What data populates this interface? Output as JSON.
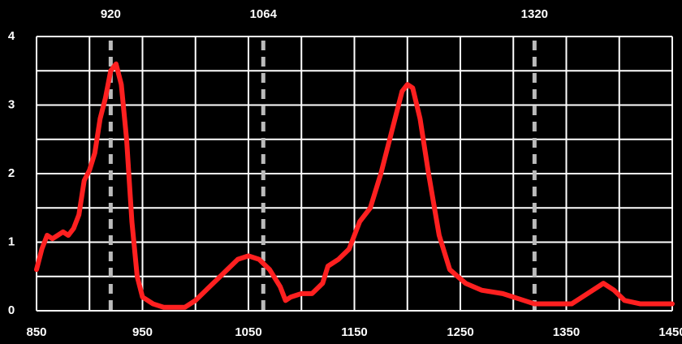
{
  "chart_data": {
    "type": "line",
    "x": [
      850,
      855,
      860,
      865,
      870,
      875,
      880,
      885,
      890,
      895,
      900,
      905,
      910,
      915,
      920,
      925,
      930,
      935,
      940,
      945,
      950,
      960,
      970,
      980,
      990,
      1000,
      1010,
      1020,
      1030,
      1040,
      1050,
      1060,
      1070,
      1080,
      1085,
      1090,
      1100,
      1110,
      1120,
      1125,
      1135,
      1145,
      1155,
      1165,
      1175,
      1185,
      1195,
      1200,
      1205,
      1212,
      1220,
      1230,
      1240,
      1255,
      1270,
      1290,
      1310,
      1320,
      1340,
      1355,
      1365,
      1380,
      1385,
      1395,
      1405,
      1420,
      1450
    ],
    "series": [
      {
        "color": "#ff2020",
        "values": [
          0.6,
          0.9,
          1.1,
          1.05,
          1.1,
          1.15,
          1.1,
          1.2,
          1.4,
          1.9,
          2.05,
          2.3,
          2.8,
          3.1,
          3.5,
          3.6,
          3.3,
          2.5,
          1.3,
          0.5,
          0.2,
          0.1,
          0.05,
          0.05,
          0.05,
          0.15,
          0.3,
          0.45,
          0.6,
          0.75,
          0.8,
          0.75,
          0.6,
          0.35,
          0.15,
          0.2,
          0.25,
          0.25,
          0.4,
          0.65,
          0.75,
          0.9,
          1.3,
          1.5,
          2.0,
          2.6,
          3.2,
          3.3,
          3.25,
          2.8,
          2.0,
          1.1,
          0.6,
          0.4,
          0.3,
          0.25,
          0.15,
          0.1,
          0.1,
          0.1,
          0.2,
          0.35,
          0.4,
          0.3,
          0.15,
          0.1,
          0.1
        ]
      }
    ],
    "xlim": [
      850,
      1450
    ],
    "ylim": [
      0,
      4
    ],
    "xticks": [
      850,
      950,
      1050,
      1150,
      1250,
      1350,
      1450
    ],
    "yticks": [
      0,
      1,
      2,
      3,
      4
    ],
    "xgrid": [
      850,
      900,
      950,
      1000,
      1050,
      1100,
      1150,
      1200,
      1250,
      1300,
      1350,
      1400,
      1450
    ],
    "ygrid": [
      0,
      0.5,
      1,
      1.5,
      2,
      2.5,
      3,
      3.5,
      4
    ],
    "markers": [
      920,
      1064,
      1320
    ]
  }
}
